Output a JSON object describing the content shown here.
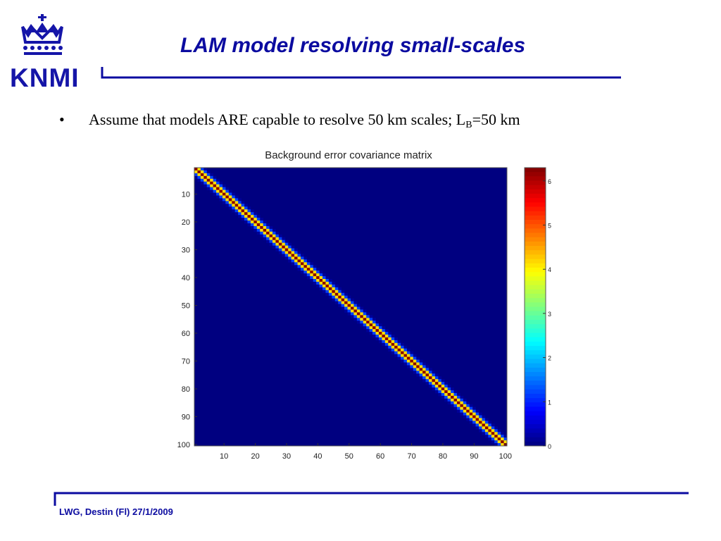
{
  "logo": {
    "text": "KNMI",
    "icon": "crown-icon",
    "color": "#1515a8"
  },
  "slide": {
    "title": "LAM model resolving small-scales",
    "bullet": {
      "marker": "•",
      "text_before": "Assume that models ARE capable to resolve 50 km scales; L",
      "subscript": "B",
      "text_after": "=50 km"
    },
    "footer": "LWG, Destin (Fl) 27/1/2009",
    "accent_color": "#0b0ba0"
  },
  "chart_data": {
    "type": "heatmap",
    "title": "Background error covariance matrix",
    "xlabel": "",
    "ylabel": "",
    "x_range": [
      1,
      100
    ],
    "y_range": [
      1,
      100
    ],
    "x_ticks": [
      10,
      20,
      30,
      40,
      50,
      60,
      70,
      80,
      90,
      100
    ],
    "y_ticks": [
      10,
      20,
      30,
      40,
      50,
      60,
      70,
      80,
      90,
      100
    ],
    "matrix_size": 100,
    "structure": "banded diagonal, values decay away from main diagonal",
    "diagonal_value": 6.25,
    "band_half_width_cells": 3,
    "off_band_value": 0,
    "colormap": "jet",
    "colorbar": {
      "range": [
        0,
        6.3
      ],
      "ticks": [
        0,
        1,
        2,
        3,
        4,
        5,
        6
      ]
    },
    "grid": false,
    "legend": "none"
  }
}
